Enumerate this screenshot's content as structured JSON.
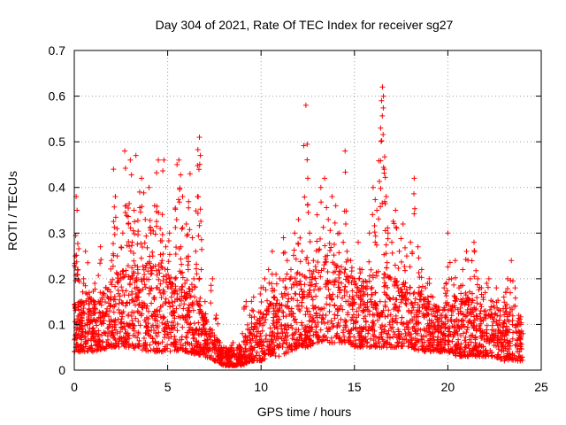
{
  "chart_data": {
    "type": "scatter",
    "title": "Day 304 of 2021, Rate Of TEC Index for receiver sg27",
    "xlabel": "GPS time / hours",
    "ylabel": "ROTI / TECUs",
    "xlim": [
      0,
      25
    ],
    "ylim": [
      0,
      0.7
    ],
    "xticks": [
      0,
      5,
      10,
      15,
      20,
      25
    ],
    "yticks": [
      0,
      0.1,
      0.2,
      0.3,
      0.4,
      0.5,
      0.6,
      0.7
    ],
    "xtick_labels": [
      "0",
      "5",
      "10",
      "15",
      "20",
      "25"
    ],
    "ytick_labels": [
      "0",
      "0.1",
      "0.2",
      "0.3",
      "0.4",
      "0.5",
      "0.6",
      "0.7"
    ],
    "grid": true,
    "marker": "+",
    "color": "#ff0000",
    "series": [
      {
        "name": "ROTI",
        "points": [
          [
            0.05,
            0.25
          ],
          [
            0.1,
            0.38
          ],
          [
            0.15,
            0.35
          ],
          [
            0.2,
            0.22
          ],
          [
            0.3,
            0.15
          ],
          [
            0.4,
            0.12
          ],
          [
            0.5,
            0.2
          ],
          [
            0.6,
            0.26
          ],
          [
            0.7,
            0.1
          ],
          [
            0.8,
            0.17
          ],
          [
            1.0,
            0.13
          ],
          [
            1.1,
            0.19
          ],
          [
            1.2,
            0.08
          ],
          [
            1.4,
            0.27
          ],
          [
            1.5,
            0.12
          ],
          [
            1.7,
            0.18
          ],
          [
            1.9,
            0.1
          ],
          [
            2.0,
            0.24
          ],
          [
            2.1,
            0.44
          ],
          [
            2.2,
            0.38
          ],
          [
            2.3,
            0.25
          ],
          [
            2.5,
            0.2
          ],
          [
            2.6,
            0.3
          ],
          [
            2.7,
            0.48
          ],
          [
            2.8,
            0.36
          ],
          [
            2.9,
            0.32
          ],
          [
            3.0,
            0.46
          ],
          [
            3.1,
            0.28
          ],
          [
            3.2,
            0.35
          ],
          [
            3.3,
            0.47
          ],
          [
            3.4,
            0.22
          ],
          [
            3.5,
            0.39
          ],
          [
            3.6,
            0.42
          ],
          [
            3.7,
            0.2
          ],
          [
            3.8,
            0.33
          ],
          [
            3.9,
            0.14
          ],
          [
            4.0,
            0.4
          ],
          [
            4.1,
            0.3
          ],
          [
            4.2,
            0.25
          ],
          [
            4.3,
            0.36
          ],
          [
            4.4,
            0.18
          ],
          [
            4.5,
            0.46
          ],
          [
            4.6,
            0.31
          ],
          [
            4.7,
            0.24
          ],
          [
            4.8,
            0.46
          ],
          [
            4.9,
            0.27
          ],
          [
            5.0,
            0.22
          ],
          [
            5.1,
            0.3
          ],
          [
            5.2,
            0.16
          ],
          [
            5.3,
            0.13
          ],
          [
            5.4,
            0.2
          ],
          [
            5.5,
            0.45
          ],
          [
            5.6,
            0.46
          ],
          [
            5.7,
            0.27
          ],
          [
            5.8,
            0.38
          ],
          [
            5.9,
            0.17
          ],
          [
            6.0,
            0.32
          ],
          [
            6.1,
            0.22
          ],
          [
            6.2,
            0.43
          ],
          [
            6.3,
            0.14
          ],
          [
            6.4,
            0.2
          ],
          [
            6.5,
            0.26
          ],
          [
            6.6,
            0.38
          ],
          [
            6.7,
            0.51
          ],
          [
            6.75,
            0.47
          ],
          [
            6.8,
            0.22
          ],
          [
            6.9,
            0.12
          ],
          [
            7.0,
            0.15
          ],
          [
            7.2,
            0.08
          ],
          [
            7.4,
            0.2
          ],
          [
            7.6,
            0.12
          ],
          [
            7.8,
            0.06
          ],
          [
            8.0,
            0.05
          ],
          [
            8.2,
            0.04
          ],
          [
            8.5,
            0.06
          ],
          [
            8.8,
            0.05
          ],
          [
            9.0,
            0.08
          ],
          [
            9.2,
            0.15
          ],
          [
            9.4,
            0.12
          ],
          [
            9.6,
            0.16
          ],
          [
            9.8,
            0.11
          ],
          [
            10.0,
            0.18
          ],
          [
            10.2,
            0.2
          ],
          [
            10.4,
            0.22
          ],
          [
            10.6,
            0.26
          ],
          [
            10.8,
            0.21
          ],
          [
            11.0,
            0.2
          ],
          [
            11.2,
            0.29
          ],
          [
            11.4,
            0.24
          ],
          [
            11.6,
            0.22
          ],
          [
            11.8,
            0.3
          ],
          [
            12.0,
            0.33
          ],
          [
            12.2,
            0.26
          ],
          [
            12.4,
            0.58
          ],
          [
            12.5,
            0.42
          ],
          [
            12.6,
            0.3
          ],
          [
            12.8,
            0.24
          ],
          [
            13.0,
            0.34
          ],
          [
            13.2,
            0.4
          ],
          [
            13.4,
            0.42
          ],
          [
            13.6,
            0.33
          ],
          [
            13.8,
            0.38
          ],
          [
            14.0,
            0.36
          ],
          [
            14.2,
            0.3
          ],
          [
            14.4,
            0.28
          ],
          [
            14.5,
            0.48
          ],
          [
            14.6,
            0.26
          ],
          [
            14.8,
            0.24
          ],
          [
            15.0,
            0.2
          ],
          [
            15.2,
            0.28
          ],
          [
            15.4,
            0.22
          ],
          [
            15.6,
            0.18
          ],
          [
            15.8,
            0.3
          ],
          [
            16.0,
            0.4
          ],
          [
            16.2,
            0.35
          ],
          [
            16.4,
            0.53
          ],
          [
            16.45,
            0.59
          ],
          [
            16.5,
            0.62
          ],
          [
            16.55,
            0.6
          ],
          [
            16.6,
            0.44
          ],
          [
            16.7,
            0.38
          ],
          [
            16.8,
            0.3
          ],
          [
            17.0,
            0.28
          ],
          [
            17.2,
            0.35
          ],
          [
            17.4,
            0.26
          ],
          [
            17.6,
            0.32
          ],
          [
            17.8,
            0.25
          ],
          [
            18.0,
            0.28
          ],
          [
            18.2,
            0.42
          ],
          [
            18.4,
            0.27
          ],
          [
            18.6,
            0.22
          ],
          [
            18.8,
            0.18
          ],
          [
            19.0,
            0.2
          ],
          [
            19.2,
            0.16
          ],
          [
            19.4,
            0.14
          ],
          [
            19.6,
            0.12
          ],
          [
            19.8,
            0.18
          ],
          [
            20.0,
            0.3
          ],
          [
            20.2,
            0.2
          ],
          [
            20.4,
            0.24
          ],
          [
            20.6,
            0.18
          ],
          [
            20.8,
            0.22
          ],
          [
            21.0,
            0.26
          ],
          [
            21.2,
            0.2
          ],
          [
            21.4,
            0.28
          ],
          [
            21.6,
            0.2
          ],
          [
            21.8,
            0.18
          ],
          [
            22.0,
            0.17
          ],
          [
            22.2,
            0.2
          ],
          [
            22.4,
            0.15
          ],
          [
            22.6,
            0.18
          ],
          [
            22.8,
            0.13
          ],
          [
            23.0,
            0.16
          ],
          [
            23.2,
            0.2
          ],
          [
            23.4,
            0.24
          ],
          [
            23.6,
            0.18
          ],
          [
            23.8,
            0.12
          ],
          [
            23.9,
            0.1
          ]
        ],
        "baseline_envelope": {
          "x": [
            0,
            1,
            2,
            3,
            4,
            5,
            6,
            7,
            7.5,
            8,
            8.5,
            9,
            9.5,
            10,
            10.5,
            11,
            11.5,
            12,
            12.5,
            13,
            13.5,
            14,
            14.5,
            15,
            15.5,
            16,
            16.5,
            17,
            17.5,
            18,
            18.5,
            19,
            19.5,
            20,
            20.5,
            21,
            21.5,
            22,
            22.5,
            23,
            23.5,
            24
          ],
          "low": [
            0.04,
            0.04,
            0.05,
            0.05,
            0.04,
            0.04,
            0.04,
            0.03,
            0.02,
            0.01,
            0.01,
            0.01,
            0.02,
            0.02,
            0.03,
            0.03,
            0.04,
            0.05,
            0.05,
            0.06,
            0.06,
            0.06,
            0.06,
            0.05,
            0.05,
            0.05,
            0.05,
            0.05,
            0.05,
            0.05,
            0.04,
            0.04,
            0.04,
            0.04,
            0.03,
            0.03,
            0.03,
            0.03,
            0.03,
            0.02,
            0.02,
            0.02
          ],
          "high": [
            0.15,
            0.16,
            0.2,
            0.24,
            0.24,
            0.22,
            0.2,
            0.12,
            0.08,
            0.05,
            0.05,
            0.07,
            0.09,
            0.12,
            0.15,
            0.18,
            0.2,
            0.22,
            0.2,
            0.24,
            0.25,
            0.24,
            0.22,
            0.2,
            0.2,
            0.22,
            0.25,
            0.2,
            0.2,
            0.19,
            0.17,
            0.15,
            0.14,
            0.15,
            0.16,
            0.16,
            0.15,
            0.14,
            0.14,
            0.13,
            0.13,
            0.12
          ]
        }
      }
    ]
  }
}
